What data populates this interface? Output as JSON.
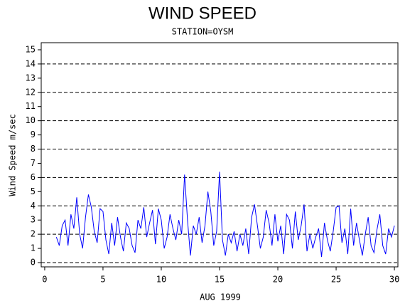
{
  "chart_data": {
    "type": "line",
    "title": "WIND SPEED",
    "subtitle": "STATION=OYSM",
    "x_label": "AUG 1999",
    "y_label": "Wind Speed m/sec",
    "color": "#0000ff",
    "xlim": [
      -0.3,
      30.3
    ],
    "ylim": [
      -0.3,
      15.5
    ],
    "xticks": [
      0,
      5,
      10,
      15,
      20,
      25,
      30
    ],
    "yticks": [
      0,
      1,
      2,
      3,
      4,
      5,
      6,
      7,
      8,
      9,
      10,
      11,
      12,
      13,
      14,
      15
    ],
    "hlines": [
      0,
      2,
      4,
      6,
      8,
      10,
      12,
      14
    ],
    "x": [
      1,
      1.25,
      1.5,
      1.75,
      2,
      2.25,
      2.5,
      2.75,
      3,
      3.25,
      3.5,
      3.75,
      4,
      4.25,
      4.5,
      4.75,
      5,
      5.25,
      5.5,
      5.75,
      6,
      6.25,
      6.5,
      6.75,
      7,
      7.25,
      7.5,
      7.75,
      8,
      8.25,
      8.5,
      8.75,
      9,
      9.25,
      9.5,
      9.75,
      10,
      10.25,
      10.5,
      10.75,
      11,
      11.25,
      11.5,
      11.75,
      12,
      12.25,
      12.5,
      12.75,
      13,
      13.25,
      13.5,
      13.75,
      14,
      14.25,
      14.5,
      14.75,
      15,
      15.25,
      15.5,
      15.75,
      16,
      16.25,
      16.5,
      16.75,
      17,
      17.25,
      17.5,
      17.75,
      18,
      18.25,
      18.5,
      18.75,
      19,
      19.25,
      19.5,
      19.75,
      20,
      20.25,
      20.5,
      20.75,
      21,
      21.25,
      21.5,
      21.75,
      22,
      22.25,
      22.5,
      22.75,
      23,
      23.25,
      23.5,
      23.75,
      24,
      24.25,
      24.5,
      24.75,
      25,
      25.25,
      25.5,
      25.75,
      26,
      26.25,
      26.5,
      26.75,
      27,
      27.25,
      27.5,
      27.75,
      28,
      28.25,
      28.5,
      28.75,
      29,
      29.25,
      29.5,
      29.75,
      30
    ],
    "values": [
      1.8,
      1.2,
      2.6,
      3.0,
      1.2,
      3.4,
      2.4,
      4.6,
      2.0,
      1.0,
      3.2,
      4.8,
      3.9,
      2.2,
      1.4,
      3.8,
      3.6,
      1.6,
      0.6,
      2.8,
      1.2,
      3.2,
      1.8,
      0.8,
      2.8,
      2.4,
      1.2,
      0.7,
      3.0,
      2.4,
      3.9,
      1.8,
      2.8,
      3.7,
      1.3,
      3.8,
      3.0,
      1.0,
      1.8,
      3.4,
      2.4,
      1.6,
      3.0,
      2.0,
      6.2,
      3.0,
      0.5,
      2.6,
      2.0,
      3.2,
      1.4,
      2.6,
      5.0,
      3.6,
      1.2,
      2.2,
      6.4,
      1.6,
      0.5,
      2.0,
      1.4,
      2.2,
      0.8,
      2.0,
      1.2,
      2.4,
      0.6,
      3.2,
      4.1,
      2.6,
      1.0,
      1.8,
      3.7,
      2.8,
      1.2,
      3.4,
      1.5,
      2.6,
      0.6,
      3.4,
      3.0,
      1.0,
      3.6,
      1.6,
      2.6,
      4.1,
      0.8,
      2.0,
      1.0,
      1.8,
      2.4,
      0.4,
      2.8,
      1.6,
      0.8,
      2.2,
      3.9,
      4.0,
      1.4,
      2.4,
      0.6,
      3.8,
      1.2,
      2.8,
      1.6,
      0.5,
      2.0,
      3.2,
      1.2,
      0.7,
      2.3,
      3.4,
      1.2,
      0.6,
      2.4,
      1.8,
      2.6
    ]
  }
}
